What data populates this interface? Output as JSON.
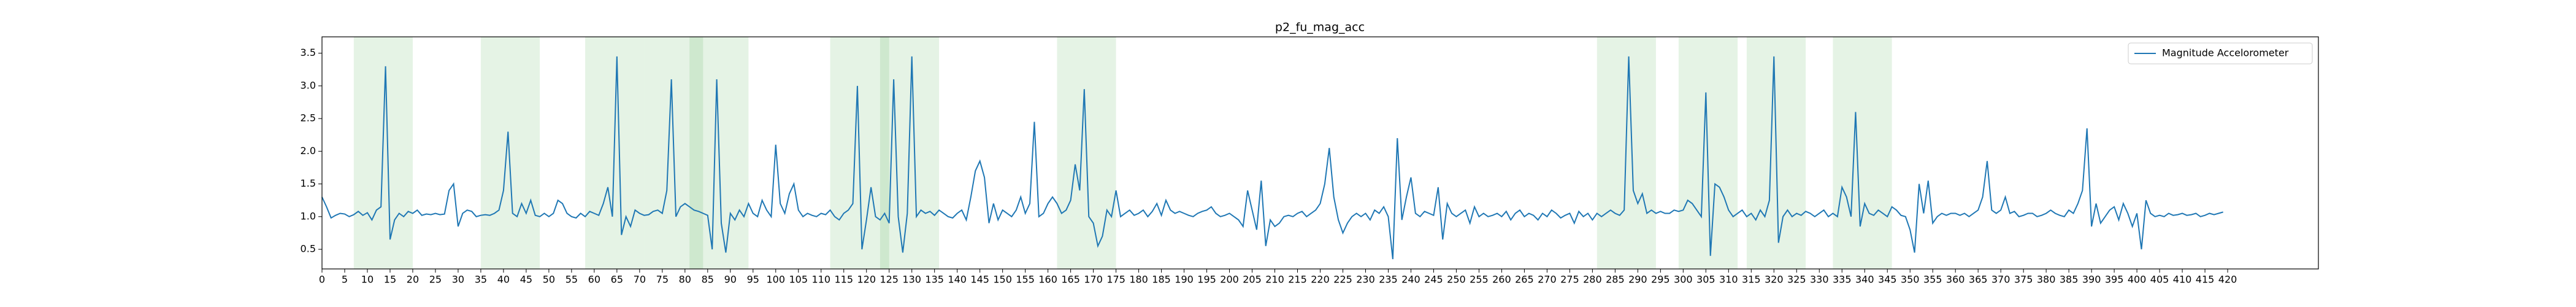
{
  "chart_data": {
    "type": "line",
    "title": "p2_fu_mag_acc",
    "series": [
      {
        "name": "Magnitude Accelorometer",
        "color": "#1f77b4",
        "values": [
          1.3,
          1.15,
          0.98,
          1.02,
          1.05,
          1.04,
          1.0,
          1.03,
          1.08,
          1.02,
          1.06,
          0.95,
          1.1,
          1.15,
          3.3,
          0.65,
          0.95,
          1.05,
          1.0,
          1.08,
          1.05,
          1.1,
          1.02,
          1.04,
          1.03,
          1.05,
          1.03,
          1.04,
          1.4,
          1.5,
          0.85,
          1.05,
          1.1,
          1.08,
          1.0,
          1.02,
          1.03,
          1.02,
          1.05,
          1.1,
          1.4,
          2.3,
          1.05,
          1.0,
          1.2,
          1.05,
          1.25,
          1.02,
          1.0,
          1.05,
          1.0,
          1.05,
          1.25,
          1.2,
          1.05,
          1.0,
          0.98,
          1.05,
          1.0,
          1.08,
          1.05,
          1.02,
          1.2,
          1.45,
          1.0,
          3.45,
          0.72,
          1.0,
          0.85,
          1.1,
          1.05,
          1.02,
          1.03,
          1.08,
          1.1,
          1.05,
          1.4,
          3.1,
          1.0,
          1.15,
          1.2,
          1.15,
          1.1,
          1.08,
          1.05,
          1.02,
          0.5,
          3.1,
          0.9,
          0.45,
          1.05,
          0.95,
          1.1,
          1.0,
          1.2,
          1.05,
          1.0,
          1.25,
          1.1,
          1.0,
          2.1,
          1.2,
          1.05,
          1.35,
          1.5,
          1.1,
          1.0,
          1.05,
          1.02,
          1.0,
          1.05,
          1.03,
          1.1,
          1.0,
          0.95,
          1.05,
          1.1,
          1.2,
          3.0,
          0.5,
          0.95,
          1.45,
          1.0,
          0.95,
          1.05,
          0.9,
          3.1,
          1.0,
          0.45,
          1.05,
          3.45,
          1.0,
          1.1,
          1.05,
          1.08,
          1.02,
          1.1,
          1.05,
          1.0,
          0.98,
          1.05,
          1.1,
          0.95,
          1.3,
          1.7,
          1.85,
          1.6,
          0.9,
          1.2,
          0.95,
          1.1,
          1.05,
          1.0,
          1.1,
          1.3,
          1.05,
          1.2,
          2.45,
          1.0,
          1.05,
          1.2,
          1.3,
          1.2,
          1.05,
          1.1,
          1.25,
          1.8,
          1.4,
          2.95,
          1.0,
          0.9,
          0.55,
          0.7,
          1.1,
          1.0,
          1.4,
          1.0,
          1.05,
          1.1,
          1.02,
          1.05,
          1.1,
          1.0,
          1.08,
          1.2,
          1.02,
          1.25,
          1.1,
          1.05,
          1.08,
          1.05,
          1.02,
          1.0,
          1.05,
          1.08,
          1.1,
          1.15,
          1.05,
          1.0,
          1.02,
          1.05,
          1.0,
          0.95,
          0.85,
          1.4,
          1.1,
          0.8,
          1.55,
          0.55,
          0.95,
          0.85,
          0.9,
          1.0,
          1.02,
          1.0,
          1.05,
          1.08,
          1.0,
          1.05,
          1.1,
          1.2,
          1.5,
          2.05,
          1.3,
          0.95,
          0.75,
          0.9,
          1.0,
          1.05,
          1.0,
          1.05,
          0.95,
          1.1,
          1.05,
          1.15,
          1.0,
          0.35,
          2.2,
          0.95,
          1.3,
          1.6,
          1.05,
          1.0,
          1.08,
          1.05,
          1.02,
          1.45,
          0.65,
          1.2,
          1.05,
          1.0,
          1.05,
          1.1,
          0.9,
          1.15,
          1.0,
          1.05,
          1.0,
          1.02,
          1.05,
          1.0,
          1.08,
          0.95,
          1.05,
          1.1,
          1.0,
          1.05,
          1.02,
          0.95,
          1.05,
          1.0,
          1.1,
          1.05,
          0.98,
          1.02,
          1.05,
          0.9,
          1.08,
          1.0,
          1.05,
          0.95,
          1.05,
          1.0,
          1.05,
          1.1,
          1.05,
          1.02,
          1.1,
          3.45,
          1.4,
          1.2,
          1.35,
          1.05,
          1.1,
          1.05,
          1.08,
          1.05,
          1.05,
          1.1,
          1.08,
          1.1,
          1.25,
          1.2,
          1.1,
          1.0,
          2.9,
          0.4,
          1.5,
          1.45,
          1.3,
          1.1,
          1.0,
          1.05,
          1.1,
          1.0,
          1.05,
          0.95,
          1.1,
          1.0,
          1.25,
          3.45,
          0.6,
          1.0,
          1.1,
          1.0,
          1.05,
          1.02,
          1.08,
          1.05,
          1.0,
          1.05,
          1.1,
          1.0,
          1.05,
          1.0,
          1.45,
          1.3,
          1.0,
          2.6,
          0.85,
          1.2,
          1.05,
          1.02,
          1.1,
          1.05,
          1.0,
          1.15,
          1.1,
          1.02,
          1.0,
          0.8,
          0.45,
          1.5,
          1.05,
          1.55,
          0.9,
          1.0,
          1.05,
          1.02,
          1.05,
          1.05,
          1.02,
          1.05,
          1.0,
          1.05,
          1.1,
          1.3,
          1.85,
          1.1,
          1.05,
          1.1,
          1.3,
          1.05,
          1.08,
          1.0,
          1.02,
          1.05,
          1.05,
          1.0,
          1.02,
          1.05,
          1.1,
          1.05,
          1.02,
          1.0,
          1.1,
          1.05,
          1.2,
          1.4,
          2.35,
          0.85,
          1.2,
          0.9,
          1.0,
          1.1,
          1.15,
          0.95,
          1.2,
          1.05,
          0.85,
          1.05,
          0.5,
          1.25,
          1.05,
          1.0,
          1.02,
          1.0,
          1.05,
          1.02,
          1.03,
          1.05,
          1.02,
          1.03,
          1.05,
          1.0,
          1.02,
          1.05,
          1.03,
          1.05,
          1.07
        ]
      }
    ],
    "spans": [
      [
        7,
        20
      ],
      [
        35,
        48
      ],
      [
        58,
        71
      ],
      [
        71,
        84
      ],
      [
        81,
        94
      ],
      [
        112,
        125
      ],
      [
        123,
        136
      ],
      [
        162,
        175
      ],
      [
        281,
        294
      ],
      [
        299,
        312
      ],
      [
        314,
        327
      ],
      [
        333,
        346
      ]
    ],
    "span_color": "#2ca02c",
    "xlim": [
      0,
      440
    ],
    "ylim": [
      0.2,
      3.75
    ],
    "xticks": [
      0,
      5,
      10,
      15,
      20,
      25,
      30,
      35,
      40,
      45,
      50,
      55,
      60,
      65,
      70,
      75,
      80,
      85,
      90,
      95,
      100,
      105,
      110,
      115,
      120,
      125,
      130,
      135,
      140,
      145,
      150,
      155,
      160,
      165,
      170,
      175,
      180,
      185,
      190,
      195,
      200,
      205,
      210,
      215,
      220,
      225,
      230,
      235,
      240,
      245,
      250,
      255,
      260,
      265,
      270,
      275,
      280,
      285,
      290,
      295,
      300,
      305,
      310,
      315,
      320,
      325,
      330,
      335,
      340,
      345,
      350,
      355,
      360,
      365,
      370,
      375,
      380,
      385,
      390,
      395,
      400,
      405,
      410,
      415,
      420
    ],
    "yticks": [
      0.5,
      {
        "value": 1,
        "label": "1.0"
      },
      1.5,
      {
        "value": 2,
        "label": "2.0"
      },
      2.5,
      {
        "value": 3,
        "label": "3.0"
      },
      3.5
    ],
    "legend": "upper right"
  }
}
